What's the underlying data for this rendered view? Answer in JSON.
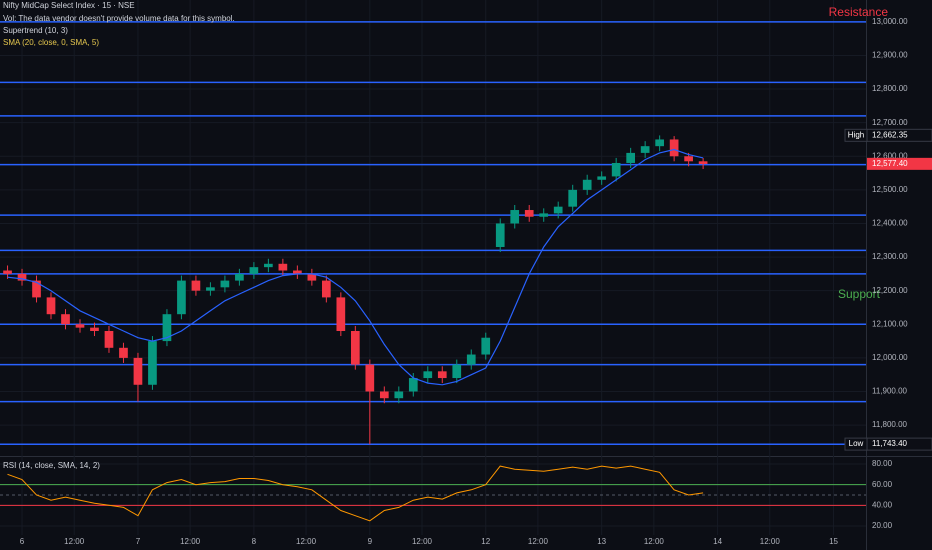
{
  "chart_data": [
    {
      "type": "candlestick",
      "title": "Nifty MidCap Select Index · 15 · NSE",
      "subtitle": "Vol: The data vendor doesn't provide volume data for this symbol.",
      "indicators": [
        "Supertrend (10, 3)",
        "SMA (20, close, 0, SMA, 5)"
      ],
      "annotations": [
        {
          "text": "Resistance",
          "color": "#f23645"
        },
        {
          "text": "Support",
          "color": "#4caf50"
        }
      ],
      "up_color": "#089981",
      "down_color": "#f23645",
      "x": [
        -0.125,
        0,
        0.125,
        0.25,
        0.375,
        0.5,
        0.625,
        0.75,
        0.875,
        1,
        1.125,
        1.25,
        1.375,
        1.5,
        1.625,
        1.75,
        1.875,
        2,
        2.125,
        2.25,
        2.375,
        2.5,
        2.625,
        2.75,
        2.875,
        3,
        3.125,
        3.25,
        3.375,
        3.5,
        3.625,
        3.75,
        3.875,
        4,
        4.125,
        4.25,
        4.375,
        4.5,
        4.625,
        4.75,
        4.875,
        5,
        5.125,
        5.25,
        5.375,
        5.5,
        5.625,
        5.75,
        5.875
      ],
      "open": [
        12260,
        12250,
        12230,
        12180,
        12130,
        12100,
        12090,
        12080,
        12030,
        12000,
        11920,
        12050,
        12130,
        12230,
        12200,
        12210,
        12230,
        12250,
        12270,
        12280,
        12260,
        12250,
        12230,
        12180,
        12080,
        11980,
        11900,
        11880,
        11900,
        11940,
        11960,
        11940,
        11980,
        12010,
        12330,
        12400,
        12440,
        12420,
        12430,
        12450,
        12500,
        12530,
        12540,
        12580,
        12610,
        12630,
        12650,
        12600,
        12585
      ],
      "high": [
        12275,
        12265,
        12245,
        12195,
        12145,
        12115,
        12105,
        12095,
        12045,
        12015,
        12065,
        12145,
        12245,
        12245,
        12225,
        12245,
        12265,
        12285,
        12295,
        12295,
        12275,
        12265,
        12245,
        12195,
        12095,
        11995,
        11915,
        11915,
        11955,
        11975,
        11975,
        11995,
        12025,
        12075,
        12415,
        12455,
        12455,
        12445,
        12465,
        12515,
        12545,
        12555,
        12595,
        12625,
        12645,
        12662,
        12660,
        12610,
        12595
      ],
      "low": [
        12235,
        12215,
        12165,
        12115,
        12085,
        12075,
        12065,
        12015,
        11985,
        11870,
        11905,
        12035,
        12115,
        12185,
        12185,
        12195,
        12215,
        12235,
        12255,
        12245,
        12235,
        12215,
        12165,
        12065,
        11965,
        11743,
        11865,
        11865,
        11885,
        11925,
        11925,
        11925,
        11965,
        11995,
        12315,
        12385,
        12405,
        12405,
        12415,
        12435,
        12485,
        12515,
        12525,
        12565,
        12595,
        12615,
        12585,
        12570,
        12562
      ],
      "close": [
        12250,
        12230,
        12180,
        12130,
        12100,
        12090,
        12080,
        12030,
        12000,
        11920,
        12050,
        12130,
        12230,
        12200,
        12210,
        12230,
        12250,
        12270,
        12280,
        12260,
        12250,
        12230,
        12180,
        12080,
        11980,
        11900,
        11880,
        11900,
        11940,
        11960,
        11940,
        11980,
        12010,
        12060,
        12400,
        12440,
        12420,
        12430,
        12450,
        12500,
        12530,
        12540,
        12580,
        12610,
        12630,
        12650,
        12600,
        12585,
        12577
      ],
      "series": [
        {
          "name": "SMA (20, close, 0, SMA, 5)",
          "color": "#2962ff",
          "values": [
            12240,
            12235,
            12225,
            12200,
            12170,
            12140,
            12120,
            12100,
            12080,
            12060,
            12050,
            12060,
            12080,
            12110,
            12140,
            12170,
            12190,
            12210,
            12230,
            12245,
            12250,
            12250,
            12240,
            12210,
            12170,
            12110,
            12040,
            11980,
            11940,
            11925,
            11920,
            11930,
            11950,
            11970,
            12050,
            12150,
            12250,
            12330,
            12390,
            12430,
            12470,
            12500,
            12530,
            12560,
            12590,
            12610,
            12620,
            12605,
            12595
          ]
        }
      ],
      "levels": {
        "color": "#2962ff",
        "values": [
          13000,
          12820,
          12720,
          12575,
          12425,
          12320,
          12250,
          12100,
          11980,
          11870,
          11743
        ]
      },
      "price_tags": [
        {
          "name": "High",
          "value": 12662.35,
          "label": "12,662.35"
        },
        {
          "value": 12577.4,
          "label": "12,577.40"
        },
        {
          "name": "Low",
          "value": 11743.4,
          "label": "11,743.40"
        }
      ],
      "xlim": [
        -0.19,
        7.28
      ],
      "xticks": [
        {
          "value": 0,
          "label": "6"
        },
        {
          "value": 0.45,
          "label": "12:00"
        },
        {
          "value": 1,
          "label": "7"
        },
        {
          "value": 1.45,
          "label": "12:00"
        },
        {
          "value": 2,
          "label": "8"
        },
        {
          "value": 2.45,
          "label": "12:00"
        },
        {
          "value": 3,
          "label": "9"
        },
        {
          "value": 3.45,
          "label": "12:00"
        },
        {
          "value": 4,
          "label": "12"
        },
        {
          "value": 4.45,
          "label": "12:00"
        },
        {
          "value": 5,
          "label": "13"
        },
        {
          "value": 5.45,
          "label": "12:00"
        },
        {
          "value": 6,
          "label": "14"
        },
        {
          "value": 6.45,
          "label": "12:00"
        },
        {
          "value": 7,
          "label": "15"
        }
      ],
      "ylim": [
        11711,
        13065
      ],
      "yticks": [
        {
          "value": 11800,
          "label": "11,800.00"
        },
        {
          "value": 11900,
          "label": "11,900.00"
        },
        {
          "value": 12000,
          "label": "12,000.00"
        },
        {
          "value": 12100,
          "label": "12,100.00"
        },
        {
          "value": 12200,
          "label": "12,200.00"
        },
        {
          "value": 12300,
          "label": "12,300.00"
        },
        {
          "value": 12400,
          "label": "12,400.00"
        },
        {
          "value": 12500,
          "label": "12,500.00"
        },
        {
          "value": 12600,
          "label": "12,600.00"
        },
        {
          "value": 12700,
          "label": "12,700.00"
        },
        {
          "value": 12800,
          "label": "12,800.00"
        },
        {
          "value": 12900,
          "label": "12,900.00"
        },
        {
          "value": 13000,
          "label": "13,000.00"
        }
      ]
    },
    {
      "type": "line",
      "title": "RSI (14, close, SMA, 14, 2)",
      "series": [
        {
          "color": "#ff9800",
          "values": [
            70,
            65,
            50,
            45,
            48,
            45,
            42,
            40,
            38,
            30,
            55,
            62,
            65,
            60,
            62,
            63,
            66,
            66,
            64,
            60,
            58,
            55,
            45,
            35,
            30,
            25,
            35,
            38,
            45,
            48,
            46,
            52,
            55,
            60,
            78,
            75,
            74,
            73,
            75,
            77,
            75,
            78,
            76,
            78,
            75,
            72,
            55,
            50,
            52
          ]
        }
      ],
      "levels": [
        {
          "value": 60,
          "color": "#4caf50"
        },
        {
          "value": 50,
          "color": "#555a66"
        },
        {
          "value": 40,
          "color": "#f23645"
        }
      ],
      "ylim": [
        11.3,
        85.8
      ],
      "yticks": [
        {
          "value": 20,
          "label": "20.00"
        },
        {
          "value": 40,
          "label": "40.00"
        },
        {
          "value": 60,
          "label": "60.00"
        },
        {
          "value": 80,
          "label": "80.00"
        }
      ]
    }
  ]
}
